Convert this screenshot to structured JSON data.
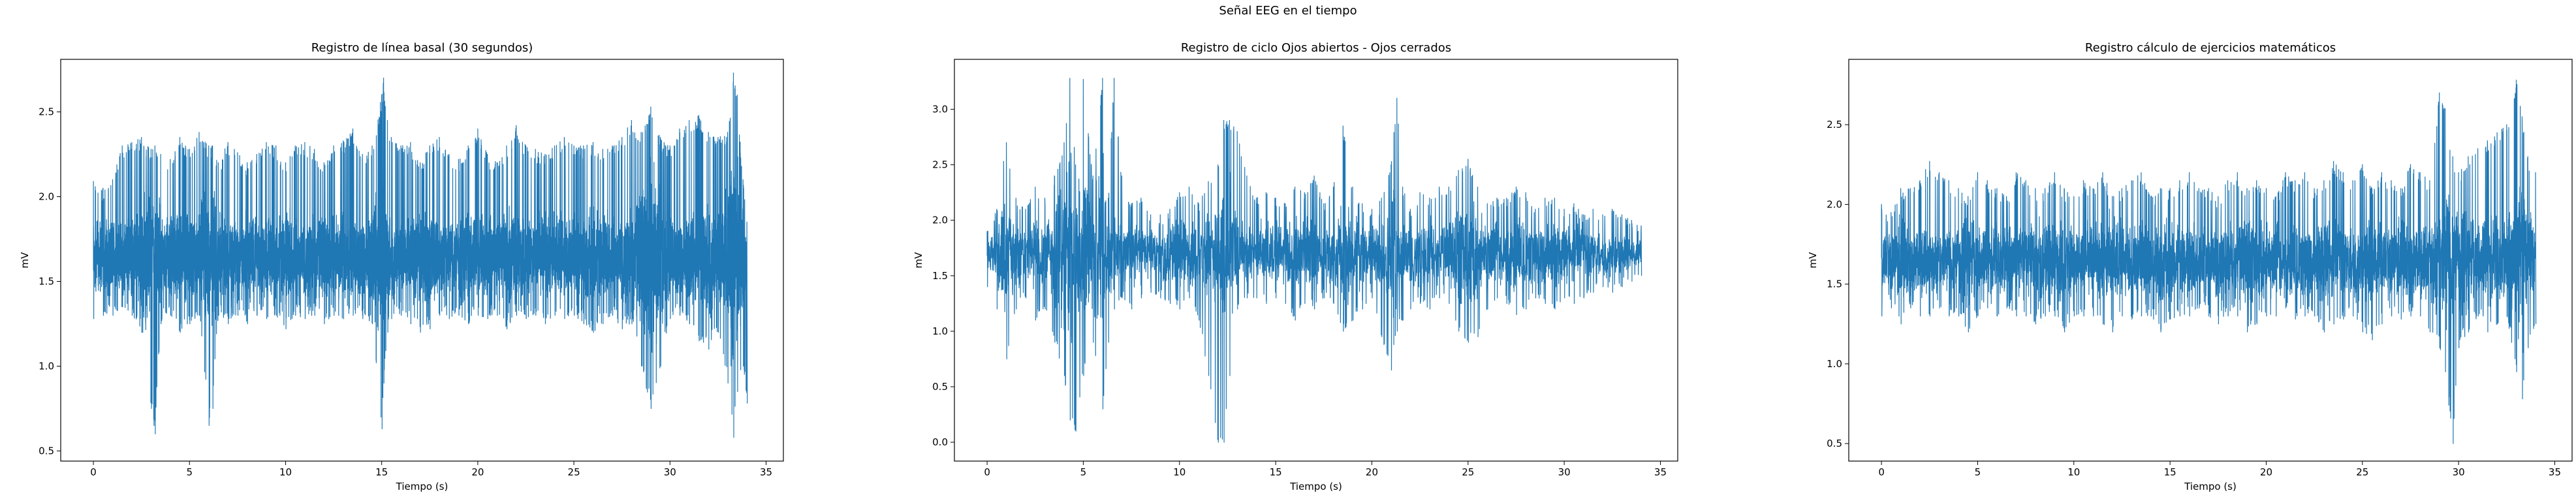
{
  "figure": {
    "suptitle": "Señal EEG en el tiempo"
  },
  "chart_data": [
    {
      "type": "line",
      "title": "Registro de línea basal (30 segundos)",
      "xlabel": "Tiempo (s)",
      "ylabel": "mV",
      "xlim": [
        -1.7,
        35.9
      ],
      "ylim": [
        0.44,
        2.81
      ],
      "xticks": [
        0,
        5,
        10,
        15,
        20,
        25,
        30,
        35
      ],
      "yticks": [
        0.5,
        1.0,
        1.5,
        2.0,
        2.5
      ],
      "ytick_labels": [
        "0.5",
        "1.0",
        "1.5",
        "2.0",
        "2.5"
      ],
      "color": "#1f77b4",
      "series": [
        {
          "x": [
            0,
            0.5,
            1.0,
            1.5,
            2.0,
            2.5,
            3.0,
            3.2,
            3.5,
            4.0,
            4.5,
            5.0,
            5.5,
            6.0,
            6.2,
            6.5,
            7.0,
            7.5,
            8.0,
            8.5,
            9.0,
            9.5,
            10.0,
            10.5,
            11.0,
            11.5,
            12.0,
            12.5,
            13.0,
            13.5,
            14.0,
            14.5,
            15.0,
            15.1,
            15.3,
            15.5,
            16.0,
            16.5,
            17.0,
            17.5,
            18.0,
            18.5,
            19.0,
            19.5,
            20.0,
            20.5,
            21.0,
            21.5,
            22.0,
            22.5,
            23.0,
            23.5,
            24.0,
            24.5,
            25.0,
            25.5,
            26.0,
            26.5,
            27.0,
            27.5,
            28.0,
            28.5,
            29.0,
            29.5,
            30.0,
            30.5,
            31.0,
            31.5,
            32.0,
            32.5,
            33.0,
            33.3,
            33.5,
            33.8,
            34.0
          ],
          "y_max": [
            2.09,
            2.05,
            2.1,
            2.3,
            2.32,
            2.35,
            2.28,
            2.3,
            2.25,
            2.22,
            2.35,
            2.28,
            2.38,
            2.3,
            2.3,
            2.2,
            2.32,
            2.26,
            2.2,
            2.25,
            2.32,
            2.3,
            2.2,
            2.3,
            2.32,
            2.28,
            2.2,
            2.3,
            2.33,
            2.4,
            2.25,
            2.3,
            2.6,
            2.7,
            2.45,
            2.35,
            2.3,
            2.32,
            2.2,
            2.3,
            2.35,
            2.25,
            2.22,
            2.3,
            2.4,
            2.25,
            2.2,
            2.3,
            2.42,
            2.3,
            2.28,
            2.25,
            2.3,
            2.35,
            2.3,
            2.3,
            2.32,
            2.28,
            2.3,
            2.35,
            2.45,
            2.38,
            2.53,
            2.35,
            2.3,
            2.4,
            2.45,
            2.48,
            2.38,
            2.35,
            2.38,
            2.73,
            2.6,
            2.1,
            1.85
          ],
          "y_min": [
            1.28,
            1.3,
            1.3,
            1.35,
            1.3,
            1.2,
            0.75,
            0.6,
            1.25,
            1.3,
            1.2,
            1.25,
            1.3,
            0.65,
            0.75,
            1.3,
            1.25,
            1.3,
            1.25,
            1.3,
            1.28,
            1.3,
            1.22,
            1.3,
            1.28,
            1.3,
            1.25,
            1.3,
            1.28,
            1.3,
            1.28,
            1.25,
            0.63,
            0.9,
            1.2,
            1.28,
            1.3,
            1.25,
            1.2,
            1.22,
            1.3,
            1.28,
            1.3,
            1.25,
            1.3,
            1.28,
            1.3,
            1.22,
            1.3,
            1.28,
            1.3,
            1.25,
            1.3,
            1.28,
            1.3,
            1.25,
            1.2,
            1.25,
            1.3,
            1.22,
            1.25,
            1.0,
            0.75,
            1.0,
            1.28,
            1.3,
            1.25,
            1.15,
            1.1,
            1.2,
            0.9,
            0.58,
            0.85,
            1.0,
            0.78
          ],
          "baseline": 1.65,
          "density": 2.2
        }
      ]
    },
    {
      "type": "line",
      "title": "Registro de ciclo Ojos abiertos - Ojos cerrados",
      "xlabel": "Tiempo (s)",
      "ylabel": "mV",
      "xlim": [
        -1.7,
        35.9
      ],
      "ylim": [
        -0.17,
        3.45
      ],
      "xticks": [
        0,
        5,
        10,
        15,
        20,
        25,
        30,
        35
      ],
      "yticks": [
        0.0,
        0.5,
        1.0,
        1.5,
        2.0,
        2.5,
        3.0
      ],
      "ytick_labels": [
        "0.0",
        "0.5",
        "1.0",
        "1.5",
        "2.0",
        "2.5",
        "3.0"
      ],
      "color": "#1f77b4",
      "series": [
        {
          "x": [
            0,
            0.5,
            1.0,
            1.5,
            2.0,
            2.5,
            3.0,
            3.5,
            4.0,
            4.3,
            4.6,
            5.0,
            5.5,
            6.0,
            6.3,
            6.6,
            7.0,
            7.5,
            8.0,
            8.5,
            9.0,
            9.5,
            10.0,
            10.5,
            11.0,
            11.5,
            12.0,
            12.3,
            12.6,
            13.0,
            13.5,
            14.0,
            14.5,
            15.0,
            15.5,
            16.0,
            16.5,
            17.0,
            17.5,
            18.0,
            18.5,
            19.0,
            19.5,
            20.0,
            20.5,
            21.0,
            21.3,
            21.6,
            22.0,
            22.5,
            23.0,
            23.5,
            24.0,
            24.5,
            25.0,
            25.5,
            26.0,
            26.5,
            27.0,
            27.5,
            28.0,
            28.5,
            29.0,
            29.5,
            30.0,
            30.5,
            31.0,
            31.5,
            32.0,
            32.5,
            33.0,
            33.5,
            34.0
          ],
          "y_max": [
            1.9,
            2.1,
            2.7,
            2.2,
            2.1,
            2.3,
            2.2,
            2.4,
            2.7,
            3.28,
            2.5,
            3.27,
            2.4,
            3.28,
            2.2,
            3.28,
            2.4,
            2.15,
            2.2,
            2.05,
            2.05,
            2.1,
            2.25,
            2.3,
            2.15,
            2.35,
            2.5,
            2.9,
            2.9,
            2.8,
            2.4,
            2.2,
            2.25,
            2.2,
            2.15,
            2.3,
            2.25,
            2.4,
            2.15,
            2.3,
            2.85,
            2.3,
            2.15,
            2.1,
            2.2,
            2.5,
            3.1,
            2.3,
            2.1,
            2.25,
            2.2,
            2.3,
            2.3,
            2.45,
            2.55,
            2.3,
            2.15,
            2.2,
            2.2,
            2.3,
            2.25,
            2.1,
            2.2,
            2.2,
            2.1,
            2.15,
            2.05,
            2.1,
            2.05,
            2.1,
            2.05,
            2.0,
            1.95
          ],
          "y_min": [
            1.4,
            1.2,
            0.75,
            1.2,
            1.3,
            1.1,
            1.2,
            0.9,
            0.6,
            0.2,
            0.1,
            0.6,
            0.9,
            0.3,
            0.9,
            1.2,
            1.3,
            1.2,
            1.3,
            1.35,
            1.3,
            1.25,
            1.2,
            1.3,
            1.1,
            0.6,
            0.0,
            0.0,
            0.6,
            1.2,
            1.3,
            1.3,
            1.25,
            1.3,
            1.25,
            1.1,
            1.25,
            1.2,
            1.3,
            1.25,
            1.0,
            1.1,
            1.2,
            1.3,
            0.95,
            0.65,
            1.0,
            1.1,
            1.2,
            1.25,
            1.2,
            1.3,
            1.25,
            1.0,
            0.9,
            0.95,
            1.2,
            1.3,
            1.25,
            1.15,
            1.2,
            1.3,
            1.25,
            1.2,
            1.3,
            1.25,
            1.3,
            1.35,
            1.4,
            1.35,
            1.4,
            1.45,
            1.5
          ],
          "baseline": 1.7,
          "density": 1.0
        }
      ]
    },
    {
      "type": "line",
      "title": "Registro cálculo de ejercicios matemáticos",
      "xlabel": "Tiempo (s)",
      "ylabel": "mV",
      "xlim": [
        -1.7,
        35.9
      ],
      "ylim": [
        0.39,
        2.91
      ],
      "xticks": [
        0,
        5,
        10,
        15,
        20,
        25,
        30,
        35
      ],
      "yticks": [
        0.5,
        1.0,
        1.5,
        2.0,
        2.5
      ],
      "ytick_labels": [
        "0.5",
        "1.0",
        "1.5",
        "2.0",
        "2.5"
      ],
      "color": "#1f77b4",
      "series": [
        {
          "x": [
            0,
            0.5,
            1.0,
            1.5,
            2.0,
            2.5,
            3.0,
            3.5,
            4.0,
            4.5,
            5.0,
            5.5,
            6.0,
            6.5,
            7.0,
            7.5,
            8.0,
            8.5,
            9.0,
            9.5,
            10.0,
            10.5,
            11.0,
            11.5,
            12.0,
            12.5,
            13.0,
            13.5,
            14.0,
            14.5,
            15.0,
            15.5,
            16.0,
            16.5,
            17.0,
            17.5,
            18.0,
            18.5,
            19.0,
            19.5,
            20.0,
            20.5,
            21.0,
            21.5,
            22.0,
            22.5,
            23.0,
            23.5,
            24.0,
            24.5,
            25.0,
            25.5,
            26.0,
            26.5,
            27.0,
            27.5,
            28.0,
            28.5,
            29.0,
            29.3,
            29.7,
            30.0,
            30.5,
            31.0,
            31.5,
            32.0,
            32.5,
            33.0,
            33.3,
            33.6,
            34.0
          ],
          "y_max": [
            2.0,
            1.95,
            2.1,
            2.1,
            2.15,
            2.27,
            2.2,
            2.15,
            2.1,
            2.05,
            2.2,
            2.15,
            2.1,
            2.05,
            2.2,
            2.15,
            2.1,
            2.1,
            2.2,
            2.1,
            2.05,
            2.15,
            2.1,
            2.2,
            2.05,
            2.1,
            2.15,
            2.2,
            2.05,
            2.1,
            2.1,
            2.15,
            2.2,
            2.1,
            2.1,
            2.05,
            2.15,
            2.2,
            2.1,
            2.15,
            2.1,
            2.05,
            2.2,
            2.15,
            2.2,
            2.1,
            2.15,
            2.27,
            2.2,
            2.15,
            2.25,
            2.1,
            2.2,
            2.15,
            2.1,
            2.25,
            2.2,
            2.15,
            2.7,
            2.6,
            2.3,
            2.2,
            2.3,
            2.35,
            2.4,
            2.45,
            2.5,
            2.78,
            2.55,
            2.3,
            2.2
          ],
          "y_min": [
            1.3,
            1.35,
            1.25,
            1.35,
            1.3,
            1.3,
            1.35,
            1.3,
            1.3,
            1.2,
            1.3,
            1.35,
            1.3,
            1.35,
            1.3,
            1.3,
            1.25,
            1.3,
            1.3,
            1.2,
            1.3,
            1.3,
            1.3,
            1.25,
            1.2,
            1.3,
            1.28,
            1.3,
            1.3,
            1.2,
            1.28,
            1.3,
            1.3,
            1.35,
            1.3,
            1.25,
            1.3,
            1.3,
            1.2,
            1.25,
            1.3,
            1.3,
            1.35,
            1.28,
            1.3,
            1.3,
            1.2,
            1.25,
            1.28,
            1.3,
            1.2,
            1.15,
            1.25,
            1.3,
            1.28,
            1.3,
            1.3,
            1.2,
            1.1,
            0.95,
            0.5,
            1.1,
            1.2,
            1.3,
            1.2,
            1.25,
            1.3,
            0.95,
            0.78,
            1.1,
            1.25
          ],
          "baseline": 1.65,
          "density": 1.4
        }
      ]
    }
  ]
}
